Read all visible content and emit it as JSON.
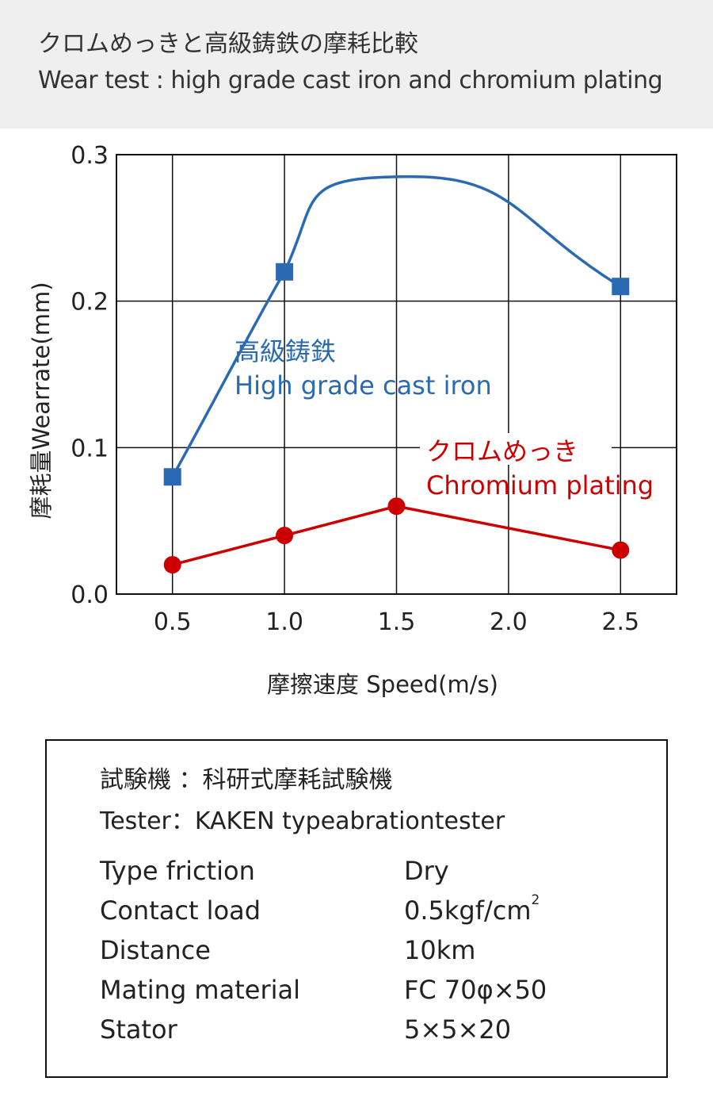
{
  "header": {
    "title_jp": "クロムめっきと高級鋳鉄の摩耗比較",
    "title_en": "Wear test : high grade cast iron and chromium plating"
  },
  "chart_data": {
    "type": "line",
    "xlabel": "摩擦速度 Speed(m/s)",
    "ylabel": "摩耗量Wearrate(mm)",
    "xlim": [
      0.25,
      2.75
    ],
    "ylim": [
      0.0,
      0.3
    ],
    "x_ticks": [
      "0.5",
      "1.0",
      "1.5",
      "2.0",
      "2.5"
    ],
    "y_ticks": [
      "0.0",
      "0.1",
      "0.2",
      "0.3"
    ],
    "grid": true,
    "series": [
      {
        "name_jp": "高級鋳鉄",
        "name": "High grade cast iron",
        "color": "#2a6ab3",
        "marker": "square",
        "points": [
          {
            "x": 0.5,
            "y": 0.08
          },
          {
            "x": 1.0,
            "y": 0.22
          },
          {
            "x": 2.5,
            "y": 0.21
          }
        ],
        "curve_peak": {
          "x": 1.57,
          "y": 0.285
        },
        "smooth": true
      },
      {
        "name_jp": "クロムめっき",
        "name": "Chromium plating",
        "color": "#cc0000",
        "marker": "circle",
        "points": [
          {
            "x": 0.5,
            "y": 0.02
          },
          {
            "x": 1.0,
            "y": 0.04
          },
          {
            "x": 1.5,
            "y": 0.06
          },
          {
            "x": 2.5,
            "y": 0.03
          }
        ],
        "smooth": false
      }
    ]
  },
  "tester": {
    "jp": "試験機 ：科研式摩耗試験機",
    "en": "Tester：KAKEN typeabrationtester"
  },
  "specs": [
    {
      "label": "Type friction",
      "value": "Dry"
    },
    {
      "label": "Contact load",
      "value": "0.5kgf/cm",
      "sup": "2"
    },
    {
      "label": "Distance",
      "value": "10km"
    },
    {
      "label": "Mating material",
      "value": "FC 70φ×50"
    },
    {
      "label": "Stator",
      "value": "5×5×20"
    }
  ]
}
